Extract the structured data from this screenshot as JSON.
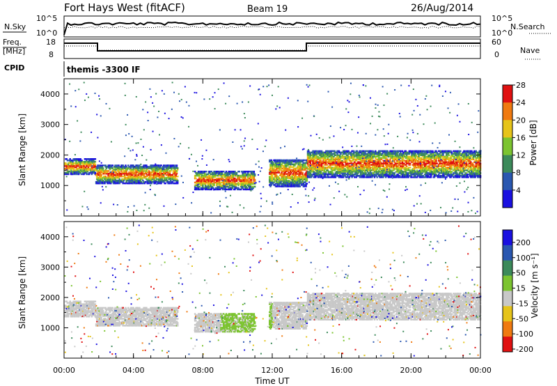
{
  "header": {
    "title": "Fort Hays West (fitACF)",
    "beam": "Beam 19",
    "date": "26/Aug/2014"
  },
  "status_panels": {
    "nsky_label": "N.Sky",
    "nsky_ticks": [
      "10^5",
      "10^0"
    ],
    "nsearch_label": "N.Search",
    "nsearch_ticks": [
      "10^5",
      "10^0"
    ],
    "freq_label": "Freq.",
    "freq_unit": "[MHz]",
    "freq_ticks": [
      "18",
      "8"
    ],
    "nave_label": "Nave",
    "nave_ticks": [
      "60",
      "0"
    ],
    "cpid_label": "CPID",
    "cpid_value": "themis -3300 IF"
  },
  "chart_data": [
    {
      "type": "heatmap",
      "panel": "power",
      "ylabel": "Slant Range [km]",
      "yticks": [
        "1000",
        "2000",
        "3000",
        "4000"
      ],
      "ylim": [
        0,
        4500
      ],
      "xlim": [
        0,
        24
      ],
      "colorbar_label": "Power [dB]",
      "colorbar_ticks": [
        "4",
        "8",
        "12",
        "16",
        "20",
        "24",
        "28"
      ],
      "colorbar_colors": [
        "#1a10e0",
        "#2a57b0",
        "#3c8a5a",
        "#7cc430",
        "#e6c41a",
        "#f07a10",
        "#e01010"
      ],
      "scatter_bands": [
        {
          "t_start": 0.0,
          "t_end": 1.8,
          "range_km": [
            1400,
            1900
          ]
        },
        {
          "t_start": 1.8,
          "t_end": 6.5,
          "range_km": [
            1100,
            1700
          ]
        },
        {
          "t_start": 7.5,
          "t_end": 11.0,
          "range_km": [
            900,
            1500
          ]
        },
        {
          "t_start": 11.8,
          "t_end": 14.0,
          "range_km": [
            1000,
            1900
          ]
        },
        {
          "t_start": 14.0,
          "t_end": 24.0,
          "range_km": [
            1300,
            2200
          ]
        }
      ]
    },
    {
      "type": "heatmap",
      "panel": "velocity",
      "xlabel": "Time UT",
      "ylabel": "Slant Range [km]",
      "xticks": [
        "00:00",
        "04:00",
        "08:00",
        "12:00",
        "16:00",
        "20:00",
        "00:00"
      ],
      "yticks": [
        "1000",
        "2000",
        "3000",
        "4000"
      ],
      "ylim": [
        0,
        4500
      ],
      "xlim": [
        0,
        24
      ],
      "colorbar_label": "Velocity [m s⁻¹]",
      "colorbar_ticks": [
        "200",
        "100",
        "50",
        "15",
        "-15",
        "-50",
        "-100",
        "-200"
      ],
      "colorbar_colors": [
        "#1a10e0",
        "#2a57b0",
        "#3c8a5a",
        "#7cc430",
        "#c8c8c8",
        "#e6c41a",
        "#f07a10",
        "#e01010"
      ]
    }
  ]
}
